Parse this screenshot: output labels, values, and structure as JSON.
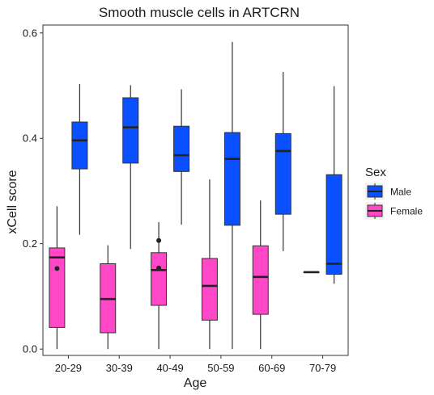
{
  "chart_data": {
    "type": "boxplot",
    "title": "Smooth muscle cells in ARTCRN",
    "xlabel": "Age",
    "ylabel": "xCell score",
    "categories": [
      "20-29",
      "30-39",
      "40-49",
      "50-59",
      "60-69",
      "70-79"
    ],
    "ylim": [
      -0.012,
      0.615
    ],
    "yticks": [
      0.0,
      0.2,
      0.4,
      0.6
    ],
    "ytick_labels": [
      "0.0",
      "0.2",
      "0.4",
      "0.6"
    ],
    "grid": false,
    "legend": {
      "title": "Sex",
      "placement": "right",
      "entries": [
        {
          "name": "Male",
          "color": "#0A50FF"
        },
        {
          "name": "Female",
          "color": "#FF47C8"
        }
      ]
    },
    "series": [
      {
        "name": "Male",
        "color": "#0A50FF",
        "boxes": [
          {
            "category": "20-29",
            "whisker_low": 0.217,
            "q1": 0.342,
            "median": 0.396,
            "q3": 0.431,
            "whisker_high": 0.503,
            "outliers": []
          },
          {
            "category": "30-39",
            "whisker_low": 0.19,
            "q1": 0.353,
            "median": 0.421,
            "q3": 0.477,
            "whisker_high": 0.501,
            "outliers": []
          },
          {
            "category": "40-49",
            "whisker_low": 0.236,
            "q1": 0.337,
            "median": 0.368,
            "q3": 0.423,
            "whisker_high": 0.493,
            "outliers": []
          },
          {
            "category": "50-59",
            "whisker_low": 0.0,
            "q1": 0.235,
            "median": 0.361,
            "q3": 0.411,
            "whisker_high": 0.583,
            "outliers": []
          },
          {
            "category": "60-69",
            "whisker_low": 0.186,
            "q1": 0.256,
            "median": 0.376,
            "q3": 0.409,
            "whisker_high": 0.526,
            "outliers": []
          },
          {
            "category": "70-79",
            "whisker_low": 0.124,
            "q1": 0.142,
            "median": 0.162,
            "q3": 0.331,
            "whisker_high": 0.499,
            "outliers": []
          }
        ]
      },
      {
        "name": "Female",
        "color": "#FF47C8",
        "boxes": [
          {
            "category": "20-29",
            "whisker_low": 0.0,
            "q1": 0.041,
            "median": 0.174,
            "q3": 0.192,
            "whisker_high": 0.271,
            "outliers": [
              0.153
            ]
          },
          {
            "category": "30-39",
            "whisker_low": 0.0,
            "q1": 0.031,
            "median": 0.095,
            "q3": 0.162,
            "whisker_high": 0.197,
            "outliers": []
          },
          {
            "category": "40-49",
            "whisker_low": 0.0,
            "q1": 0.083,
            "median": 0.15,
            "q3": 0.183,
            "whisker_high": 0.241,
            "outliers": [
              0.206,
              0.154
            ]
          },
          {
            "category": "50-59",
            "whisker_low": 0.0,
            "q1": 0.055,
            "median": 0.12,
            "q3": 0.172,
            "whisker_high": 0.322,
            "outliers": []
          },
          {
            "category": "60-69",
            "whisker_low": 0.0,
            "q1": 0.066,
            "median": 0.137,
            "q3": 0.196,
            "whisker_high": 0.282,
            "outliers": []
          },
          {
            "category": "70-79",
            "whisker_low": 0.146,
            "q1": 0.146,
            "median": 0.146,
            "q3": 0.146,
            "whisker_high": 0.146,
            "outliers": []
          }
        ]
      }
    ]
  }
}
